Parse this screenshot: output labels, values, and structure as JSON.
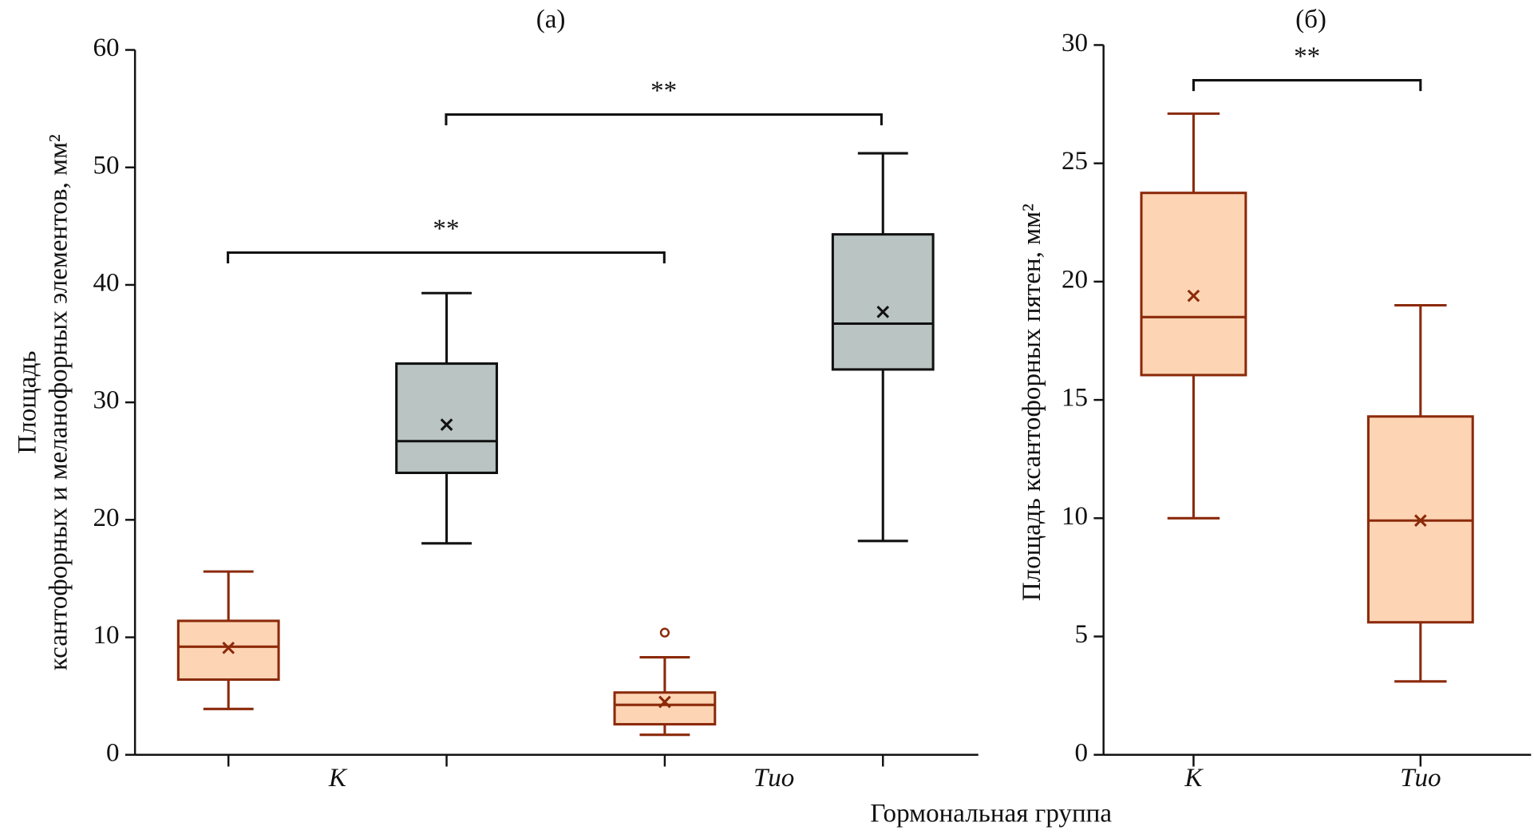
{
  "chart_data": [
    {
      "type": "box",
      "title": "(а)",
      "ylabel": [
        "Площадь",
        "ксантофорных и меланофорных элементов, мм²"
      ],
      "xlabel": "Гормональная группа",
      "categories": [
        "K",
        "Tио"
      ],
      "series": [
        {
          "color": "#fdd5b5",
          "edgecolor": "#8b2a0a",
          "boxes": [
            {
              "min": 3.9,
              "q1": 6.4,
              "median": 9.2,
              "q3": 11.4,
              "max": 15.6,
              "mean": 9.1,
              "outliers": []
            },
            {
              "min": 1.7,
              "q1": 2.6,
              "median": 4.25,
              "q3": 5.3,
              "max": 8.3,
              "mean": 4.5,
              "outliers": [
                10.4
              ]
            }
          ]
        },
        {
          "color": "#b9c4c3",
          "edgecolor": "#111111",
          "boxes": [
            {
              "min": 18.0,
              "q1": 24.0,
              "median": 26.7,
              "q3": 33.3,
              "max": 39.3,
              "mean": 28.1,
              "outliers": []
            },
            {
              "min": 18.2,
              "q1": 32.8,
              "median": 36.7,
              "q3": 44.3,
              "max": 51.2,
              "mean": 37.7,
              "outliers": []
            }
          ]
        }
      ],
      "annotations": [
        "**",
        "**"
      ],
      "ylim": [
        0,
        60
      ],
      "yticks": [
        0,
        10,
        20,
        30,
        40,
        50,
        60
      ]
    },
    {
      "type": "box",
      "title": "(б)",
      "ylabel": [
        "Площадь ксантофорных пятен, мм²"
      ],
      "categories": [
        "K",
        "Tио"
      ],
      "series": [
        {
          "color": "#fdd5b5",
          "edgecolor": "#8b2a0a",
          "boxes": [
            {
              "min": 10.0,
              "q1": 16.05,
              "median": 18.5,
              "q3": 23.75,
              "max": 27.1,
              "mean": 19.4,
              "outliers": []
            },
            {
              "min": 3.1,
              "q1": 5.6,
              "median": 9.9,
              "q3": 14.3,
              "max": 19.0,
              "mean": 9.9,
              "outliers": []
            }
          ]
        }
      ],
      "annotations": [
        "**"
      ],
      "ylim": [
        0,
        30
      ],
      "yticks": [
        0,
        5,
        10,
        15,
        20,
        25,
        30
      ]
    }
  ]
}
